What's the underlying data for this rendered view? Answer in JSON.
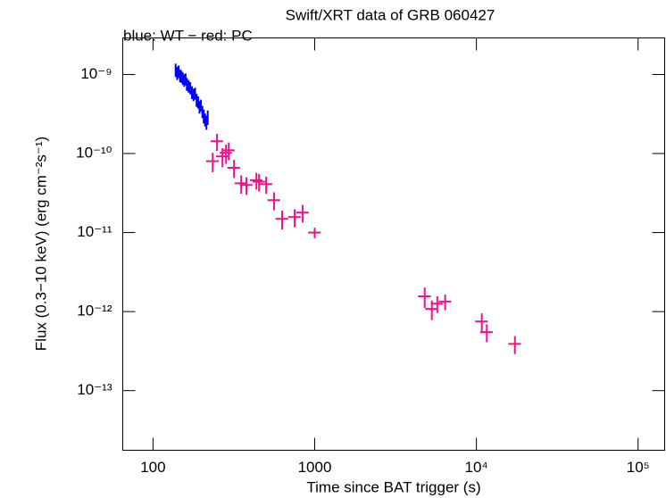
{
  "chart_data": {
    "type": "errorbar-scatter",
    "title": "Swift/XRT data of GRB 060427",
    "subtitle": "blue: WT − red: PC",
    "x_label": "Time since BAT trigger (s)",
    "y_label": "Flux (0.3−10 keV) (erg cm⁻²s⁻¹)",
    "xlog": true,
    "ylog": true,
    "xlim": [
      65,
      146000
    ],
    "ylim": [
      1.76e-14,
      2.9e-09
    ],
    "xticks": [
      100,
      1000,
      {
        "value": 10000,
        "label": "10⁴"
      },
      {
        "value": 100000,
        "label": "10⁵"
      }
    ],
    "yticks": [
      {
        "value": 1e-13,
        "label": "10⁻¹³"
      },
      {
        "value": 1e-12,
        "label": "10⁻¹²"
      },
      {
        "value": 1e-11,
        "label": "10⁻¹¹"
      },
      {
        "value": 1e-10,
        "label": "10⁻¹⁰"
      },
      {
        "value": 1e-09,
        "label": "10⁻⁹"
      }
    ],
    "series": [
      {
        "color": "#0000ff",
        "x": [
          138,
          141,
          144,
          147,
          150,
          153,
          156,
          159,
          162,
          166,
          170,
          174,
          178,
          182,
          186,
          190,
          194,
          198,
          202,
          206,
          210,
          214,
          218
        ],
        "xerr": [
          1.5,
          1.5,
          1.5,
          1.5,
          1.5,
          1.5,
          1.5,
          1.5,
          1.5,
          2,
          2,
          2,
          2,
          2,
          2,
          2,
          2,
          2,
          2,
          2,
          2,
          2,
          2
        ],
        "values": [
          1.15e-09,
          1.05e-09,
          1.1e-09,
          9.8e-10,
          9.5e-10,
          9e-10,
          8.5e-10,
          8.8e-10,
          7.6e-10,
          7.2e-10,
          6.8e-10,
          6e-10,
          5.6e-10,
          5.8e-10,
          4.8e-10,
          4.5e-10,
          3.9e-10,
          4.1e-10,
          3.4e-10,
          3e-10,
          2.7e-10,
          2.5e-10,
          2.9e-10
        ],
        "yerr": [
          2.2e-10,
          2e-10,
          2e-10,
          1.8e-10,
          1.7e-10,
          1.6e-10,
          1.5e-10,
          1.5e-10,
          1.4e-10,
          1.3e-10,
          1.2e-10,
          1.1e-10,
          1e-10,
          1e-10,
          9e-11,
          8e-11,
          7e-11,
          7e-11,
          6e-11,
          6e-11,
          5e-11,
          5e-11,
          6e-11
        ]
      },
      {
        "color": "#ee1188",
        "x": [
          234,
          249,
          269,
          283,
          294,
          317,
          351,
          378,
          436,
          453,
          501,
          561,
          629,
          752,
          843,
          1000,
          4790,
          5300,
          5730,
          6410,
          10800,
          11600,
          17300
        ],
        "xerr": [
          21,
          22,
          24,
          25,
          26,
          28,
          31,
          34,
          39,
          40,
          45,
          50,
          56,
          67,
          75,
          90,
          430,
          470,
          510,
          570,
          960,
          1030,
          1540
        ],
        "values": [
          8e-11,
          1.43e-10,
          9.2e-11,
          1.02e-10,
          1.1e-10,
          6.6e-11,
          4.2e-11,
          4e-11,
          4.6e-11,
          4.4e-11,
          4.1e-11,
          2.57e-11,
          1.49e-11,
          1.57e-11,
          1.79e-11,
          1e-11,
          1.56e-12,
          1.08e-12,
          1.26e-12,
          1.34e-12,
          7.5e-13,
          5.5e-13,
          3.9e-13
        ],
        "yerr": [
          2.2e-11,
          3.5e-11,
          2.5e-11,
          2.8e-11,
          2.8e-11,
          1.7e-11,
          1.1e-11,
          1e-11,
          1.1e-11,
          1.1e-11,
          1e-11,
          6.5e-12,
          4e-12,
          4e-12,
          4.5e-12,
          1.5e-12,
          4.5e-13,
          3e-13,
          3e-13,
          3e-13,
          2e-13,
          1.4e-13,
          1e-13
        ]
      }
    ]
  }
}
